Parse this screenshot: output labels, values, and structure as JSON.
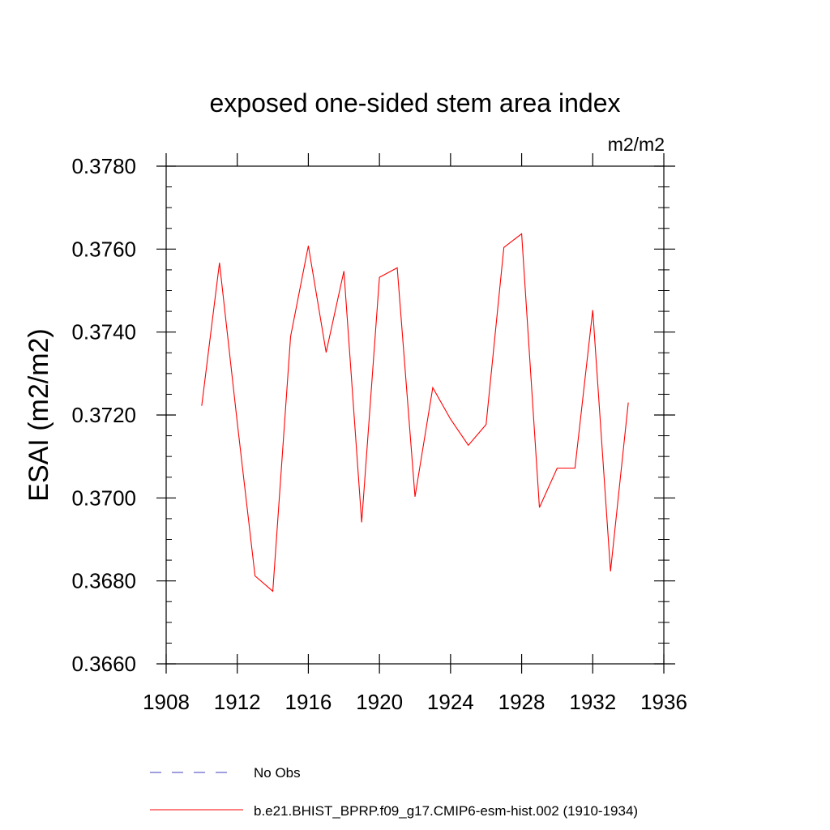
{
  "chart_data": {
    "type": "line",
    "title": "exposed one-sided stem area index",
    "units": "m2/m2",
    "ylabel": "ESAI  (m2/m2)",
    "xlabel": "",
    "xlim": [
      1908,
      1936
    ],
    "ylim": [
      0.366,
      0.378
    ],
    "x_ticks": [
      1908,
      1912,
      1916,
      1920,
      1924,
      1928,
      1932,
      1936
    ],
    "x_tick_labels": [
      "1908",
      "1912",
      "1916",
      "1920",
      "1924",
      "1928",
      "1932",
      "1936"
    ],
    "y_ticks": [
      0.366,
      0.368,
      0.37,
      0.372,
      0.374,
      0.376,
      0.378
    ],
    "y_tick_labels": [
      "0.3660",
      "0.3680",
      "0.3700",
      "0.3720",
      "0.3740",
      "0.3760",
      "0.3780"
    ],
    "grid": false,
    "legend_position": "bottom",
    "series": [
      {
        "name": "b.e21.BHIST_BPRP.f09_g17.CMIP6-esm-hist.002 (1910-1934)",
        "color": "#ff0000",
        "style": "solid",
        "x": [
          1910,
          1911,
          1912,
          1913,
          1914,
          1915,
          1916,
          1917,
          1918,
          1919,
          1920,
          1921,
          1922,
          1923,
          1924,
          1925,
          1926,
          1927,
          1928,
          1929,
          1930,
          1931,
          1932,
          1933,
          1934
        ],
        "y": [
          0.37222,
          0.37567,
          0.37182,
          0.36812,
          0.36775,
          0.37389,
          0.37608,
          0.37351,
          0.37547,
          0.36941,
          0.37532,
          0.37555,
          0.37003,
          0.37266,
          0.3719,
          0.37127,
          0.37177,
          0.37604,
          0.37637,
          0.36977,
          0.37072,
          0.37072,
          0.37453,
          0.36823,
          0.3723
        ]
      }
    ],
    "legend": [
      {
        "label": "No Obs",
        "color": "#6666cc",
        "style": "dashed"
      },
      {
        "label": "b.e21.BHIST_BPRP.f09_g17.CMIP6-esm-hist.002 (1910-1934)",
        "color": "#ff0000",
        "style": "solid"
      }
    ]
  }
}
